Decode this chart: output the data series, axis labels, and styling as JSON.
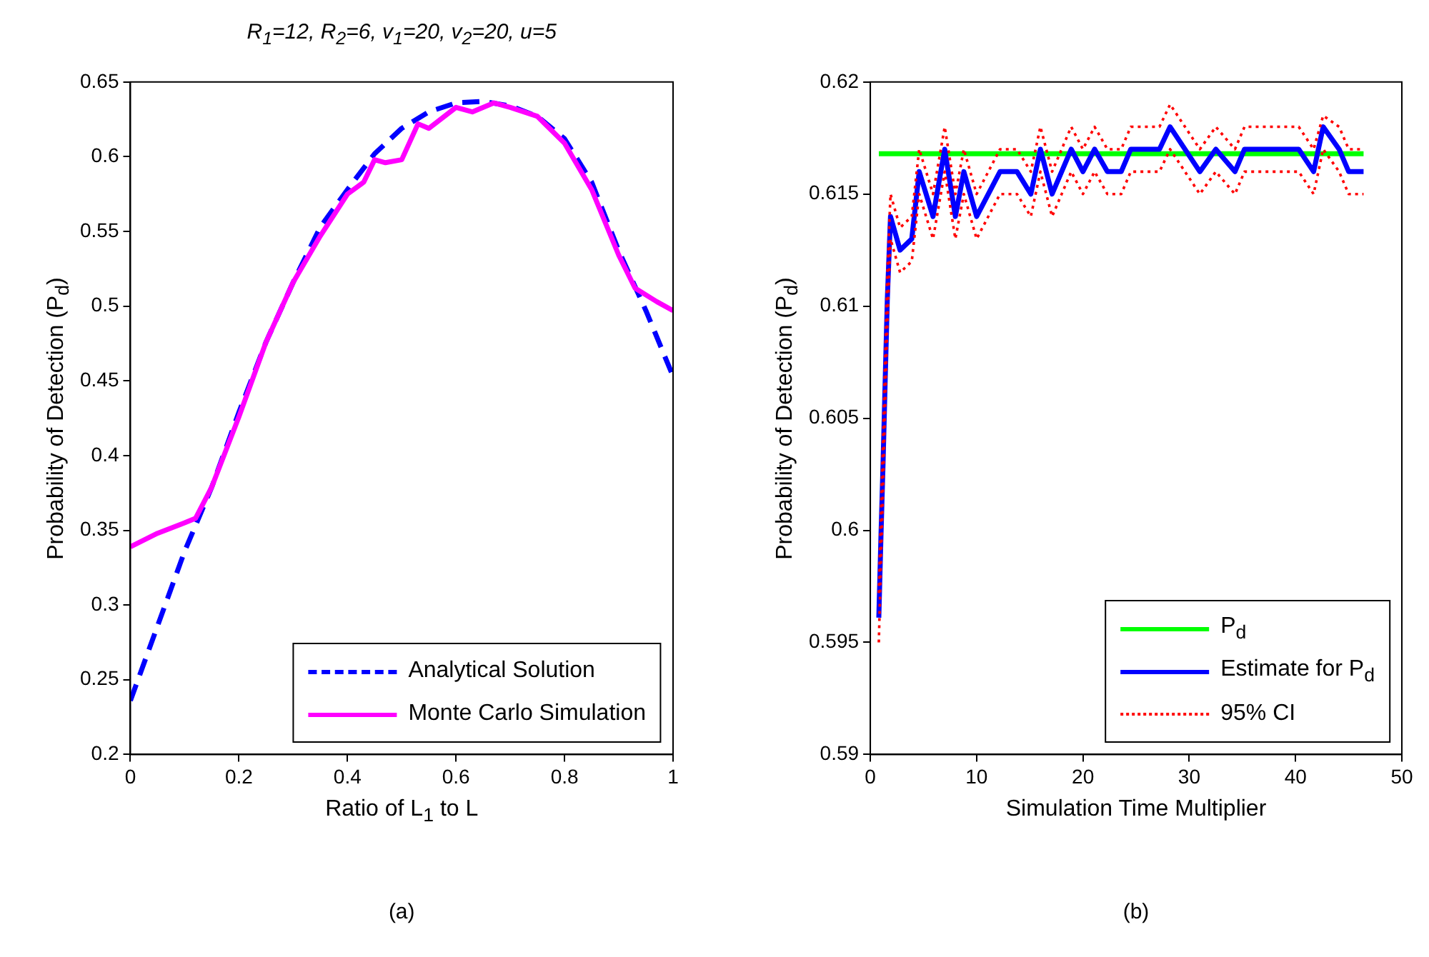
{
  "chart_data": [
    {
      "type": "line",
      "title": "R$_{1}$=12, R$_{2}$=6, v$_{1}$=20, v$_{2}$=20, u=5",
      "xlabel": "Ratio of L$_{1}$ to L",
      "ylabel": "Probability of Detection (P$_{d}$)",
      "annotations": [
        "(a)"
      ],
      "xlim": [
        0,
        1
      ],
      "ylim": [
        0.2,
        0.65
      ],
      "xticks": [
        0,
        0.2,
        0.4,
        0.6,
        0.8,
        1
      ],
      "yticks": [
        0.2,
        0.25,
        0.3,
        0.35,
        0.4,
        0.45,
        0.5,
        0.55,
        0.6,
        0.65
      ],
      "legend": "bottom right",
      "series": [
        {
          "name": "Analytical Solution",
          "color": "#0000ff",
          "line_style": "dashed",
          "x": [
            0,
            0.05,
            0.1,
            0.15,
            0.2,
            0.25,
            0.3,
            0.35,
            0.4,
            0.45,
            0.5,
            0.55,
            0.6,
            0.65,
            0.7,
            0.75,
            0.8,
            0.85,
            0.9,
            0.95,
            1
          ],
          "values": [
            0.236,
            0.286,
            0.336,
            0.379,
            0.429,
            0.476,
            0.516,
            0.553,
            0.578,
            0.602,
            0.619,
            0.63,
            0.636,
            0.637,
            0.634,
            0.627,
            0.612,
            0.583,
            0.537,
            0.497,
            0.453
          ]
        },
        {
          "name": "Monte Carlo Simulation",
          "color": "#ff00ff",
          "line_style": "solid",
          "x": [
            0,
            0.05,
            0.1,
            0.12,
            0.15,
            0.2,
            0.25,
            0.3,
            0.35,
            0.4,
            0.43,
            0.45,
            0.47,
            0.5,
            0.53,
            0.55,
            0.6,
            0.63,
            0.67,
            0.7,
            0.75,
            0.8,
            0.85,
            0.9,
            0.93,
            0.97,
            1
          ],
          "values": [
            0.339,
            0.348,
            0.355,
            0.358,
            0.379,
            0.426,
            0.476,
            0.516,
            0.547,
            0.575,
            0.583,
            0.598,
            0.596,
            0.598,
            0.622,
            0.619,
            0.633,
            0.63,
            0.636,
            0.633,
            0.627,
            0.609,
            0.578,
            0.534,
            0.512,
            0.503,
            0.497
          ]
        }
      ]
    },
    {
      "type": "line",
      "xlabel": "Simulation Time Multiplier",
      "ylabel": "Probability of Detection (P$_{d}$)",
      "annotations": [
        "(b)"
      ],
      "xlim": [
        0,
        50
      ],
      "ylim": [
        0.59,
        0.62
      ],
      "xticks": [
        0,
        10,
        20,
        30,
        40,
        50
      ],
      "yticks": [
        0.59,
        0.595,
        0.6,
        0.605,
        0.61,
        0.615,
        0.62
      ],
      "legend": "bottom right",
      "series": [
        {
          "name": "P$_{d}$",
          "color": "#00ff00",
          "line_style": "solid",
          "x": [
            0.8,
            46.4
          ],
          "values": [
            0.6168,
            0.6168
          ]
        },
        {
          "name": "Estimate for P$_{d}$",
          "color": "#0000ff",
          "line_style": "solid",
          "x": [
            0.8,
            1.0,
            1.2,
            1.4,
            1.6,
            1.9,
            2.8,
            3.9,
            4.6,
            5.9,
            7.0,
            8.0,
            8.8,
            10.0,
            12.2,
            13.8,
            15.1,
            16.0,
            17.1,
            18.9,
            20.0,
            21.1,
            22.3,
            23.6,
            24.5,
            27.2,
            28.2,
            31.0,
            32.5,
            34.3,
            35.2,
            40.3,
            41.7,
            42.6,
            44.1,
            45.0,
            46.4
          ],
          "values": [
            0.5961,
            0.5997,
            0.603,
            0.6067,
            0.6103,
            0.614,
            0.6125,
            0.613,
            0.616,
            0.614,
            0.617,
            0.614,
            0.616,
            0.614,
            0.616,
            0.616,
            0.615,
            0.617,
            0.615,
            0.617,
            0.616,
            0.617,
            0.616,
            0.616,
            0.617,
            0.617,
            0.618,
            0.616,
            0.617,
            0.616,
            0.617,
            0.617,
            0.616,
            0.618,
            0.617,
            0.616,
            0.616
          ]
        },
        {
          "name": "95% CI",
          "color": "#ff0000",
          "line_style": "dotted",
          "x": [
            0.8,
            1.0,
            1.2,
            1.4,
            1.6,
            1.9,
            2.8,
            3.9,
            4.6,
            5.9,
            7.0,
            8.0,
            8.8,
            10.0,
            12.2,
            13.8,
            15.1,
            16.0,
            17.1,
            18.9,
            20.0,
            21.1,
            22.3,
            23.6,
            24.5,
            27.2,
            28.2,
            31.0,
            32.5,
            34.3,
            35.2,
            40.3,
            41.7,
            42.6,
            44.1,
            45.0,
            46.4
          ],
          "values": [
            0.5972,
            0.6008,
            0.6041,
            0.6078,
            0.6114,
            0.615,
            0.6135,
            0.614,
            0.617,
            0.615,
            0.618,
            0.615,
            0.617,
            0.615,
            0.617,
            0.617,
            0.616,
            0.618,
            0.616,
            0.618,
            0.617,
            0.618,
            0.617,
            0.617,
            0.618,
            0.618,
            0.619,
            0.617,
            0.618,
            0.617,
            0.618,
            0.618,
            0.617,
            0.6185,
            0.618,
            0.617,
            0.617
          ]
        },
        {
          "color": "#ff0000",
          "line_style": "dotted",
          "x": [
            0.8,
            1.0,
            1.2,
            1.4,
            1.6,
            1.9,
            2.8,
            3.9,
            4.6,
            5.9,
            7.0,
            8.0,
            8.8,
            10.0,
            12.2,
            13.8,
            15.1,
            16.0,
            17.1,
            18.9,
            20.0,
            21.1,
            22.3,
            23.6,
            24.5,
            27.2,
            28.2,
            31.0,
            32.5,
            34.3,
            35.2,
            40.3,
            41.7,
            42.6,
            44.1,
            45.0,
            46.4
          ],
          "values": [
            0.595,
            0.5986,
            0.6019,
            0.6056,
            0.6092,
            0.613,
            0.6115,
            0.612,
            0.615,
            0.613,
            0.616,
            0.613,
            0.615,
            0.613,
            0.615,
            0.615,
            0.614,
            0.616,
            0.614,
            0.616,
            0.615,
            0.616,
            0.615,
            0.615,
            0.616,
            0.616,
            0.617,
            0.615,
            0.616,
            0.615,
            0.616,
            0.616,
            0.615,
            0.617,
            0.616,
            0.615,
            0.615
          ]
        }
      ]
    }
  ]
}
